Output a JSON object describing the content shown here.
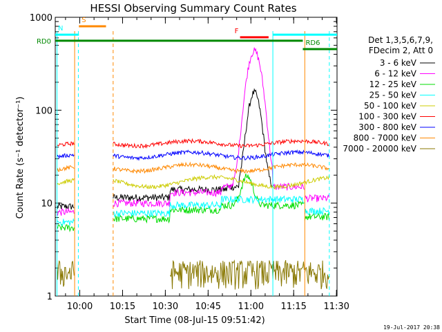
{
  "chart_data": {
    "type": "line",
    "title": "HESSI Observing Summary Count Rates",
    "ylabel": "Count Rate (s⁻¹ detector⁻¹)",
    "xlabel": "Start Time (08-Jul-15 09:51:42)",
    "yscale": "log",
    "ylim": [
      1,
      1000
    ],
    "xlim_minutes": [
      -0.3,
      98.5
    ],
    "x_unit": "minutes after 09:51:42",
    "y_ticks": [
      {
        "v": 1,
        "label": "1"
      },
      {
        "v": 10,
        "label": "10"
      },
      {
        "v": 100,
        "label": "100"
      },
      {
        "v": 1000,
        "label": "1000"
      }
    ],
    "x_ticks": [
      {
        "t": "10:00",
        "m": 8.3
      },
      {
        "t": "10:15",
        "m": 23.3
      },
      {
        "t": "10:30",
        "m": 38.3
      },
      {
        "t": "10:45",
        "m": 53.3
      },
      {
        "t": "11:00",
        "m": 68.3
      },
      {
        "t": "11:15",
        "m": 83.3
      },
      {
        "t": "11:30",
        "m": 98.3
      }
    ],
    "legend_header": [
      "Det 1,3,5,6,7,9,",
      "FDecim 2, Att 0"
    ],
    "series": [
      {
        "name": "3 - 6 keV",
        "color": "#000000"
      },
      {
        "name": "6 - 12 keV",
        "color": "#ff00ff"
      },
      {
        "name": "12 - 25 keV",
        "color": "#00dd00"
      },
      {
        "name": "25 - 50 keV",
        "color": "#00ffff"
      },
      {
        "name": "50 - 100 keV",
        "color": "#cccc00"
      },
      {
        "name": "100 - 300 keV",
        "color": "#ff0000"
      },
      {
        "name": "300 - 800 keV",
        "color": "#0000ff"
      },
      {
        "name": "800 - 7000 keV",
        "color": "#ff8800"
      },
      {
        "name": "7000 - 20000 keV",
        "color": "#887700"
      }
    ],
    "flag_bars": [
      {
        "label": "S",
        "color": "#ff8800",
        "x": [
          8.0,
          17.5
        ],
        "y": 800
      },
      {
        "label": "N",
        "color": "#00ffff",
        "x": [
          -0.3,
          8.0
        ],
        "y": 650
      },
      {
        "label": "RD0",
        "color": "#008800",
        "x": [
          -0.3,
          86.5
        ],
        "y": 560
      },
      {
        "label": "RD6",
        "color": "#008800",
        "x": [
          86.5,
          98.5
        ],
        "y": 455
      },
      {
        "label": "F",
        "color": "#ff0000",
        "x": [
          64.5,
          74.5
        ],
        "y": 610
      },
      {
        "label": "",
        "color": "#00ffff",
        "x": [
          76.0,
          98.5
        ],
        "y": 650
      }
    ],
    "time_markers": [
      {
        "m": 0.3,
        "color": "#00ffff",
        "style": "solid"
      },
      {
        "m": 6.5,
        "color": "#ff8800",
        "style": "solid"
      },
      {
        "m": 7.8,
        "color": "#00ffff",
        "style": "dashed"
      },
      {
        "m": 20.0,
        "color": "#ff8800",
        "style": "dashed"
      },
      {
        "m": 76.0,
        "color": "#00ffff",
        "style": "solid"
      },
      {
        "m": 87.2,
        "color": "#ff8800",
        "style": "solid"
      },
      {
        "m": 95.8,
        "color": "#00ffff",
        "style": "dashed"
      }
    ]
  },
  "footer_date": "19-Jul-2017 20:38"
}
